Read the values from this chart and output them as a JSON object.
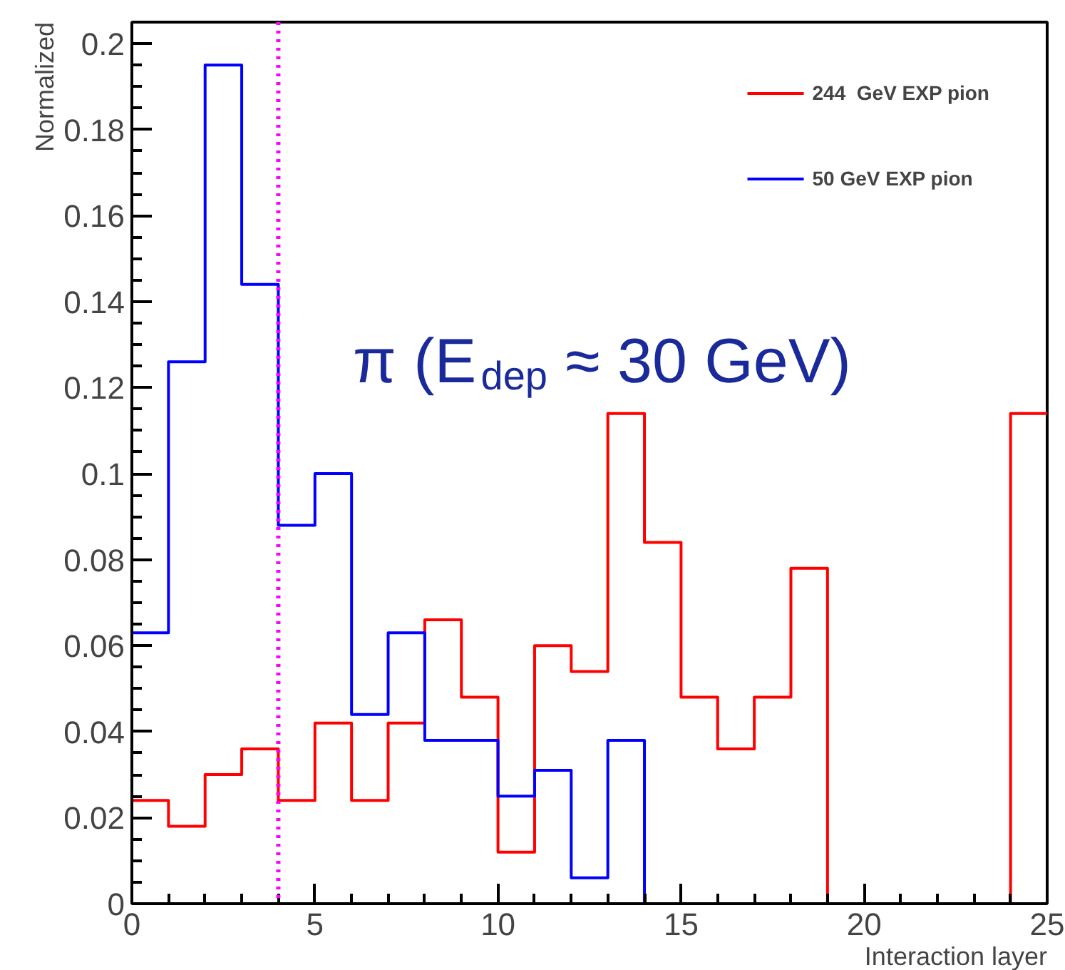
{
  "chart_data": {
    "type": "histogram",
    "xlabel": "Interaction layer",
    "ylabel": "Normalized",
    "bins": [
      0,
      1,
      2,
      3,
      4,
      5,
      6,
      7,
      8,
      9,
      10,
      11,
      12,
      13,
      14,
      15,
      16,
      17,
      18,
      19,
      20,
      21,
      22,
      23,
      24,
      25
    ],
    "series": [
      {
        "name": "244  GeV EXP pion",
        "color": "#ff0000",
        "values": [
          0.024,
          0.018,
          0.03,
          0.036,
          0.024,
          0.042,
          0.024,
          0.042,
          0.066,
          0.048,
          0.012,
          0.06,
          0.054,
          0.114,
          0.084,
          0.048,
          0.036,
          0.048,
          0.078,
          0,
          0,
          0,
          0,
          0,
          0.114
        ]
      },
      {
        "name": "50 GeV EXP pion",
        "color": "#0000ff",
        "values": [
          0.063,
          0.126,
          0.195,
          0.144,
          0.088,
          0.1,
          0.044,
          0.063,
          0.038,
          0.038,
          0.025,
          0.031,
          0.006,
          0.038,
          0,
          0,
          0,
          0,
          0,
          0,
          0,
          0,
          0,
          0,
          0
        ]
      }
    ],
    "xlim": [
      0,
      25
    ],
    "ylim": [
      0,
      0.205
    ],
    "xticks": [
      0,
      5,
      10,
      15,
      20,
      25
    ],
    "yticks": [
      0,
      0.02,
      0.04,
      0.06,
      0.08,
      0.1,
      0.12,
      0.14,
      0.16,
      0.18,
      0.2
    ],
    "ref_lines": [
      {
        "axis": "x",
        "value": 4,
        "label": null,
        "color": "#ff00ff",
        "line_style": "dotted"
      }
    ],
    "annotations": [
      "π  (E$_{dep}$ ≈ 30 GeV)"
    ],
    "legend": "top right",
    "grid": false
  }
}
